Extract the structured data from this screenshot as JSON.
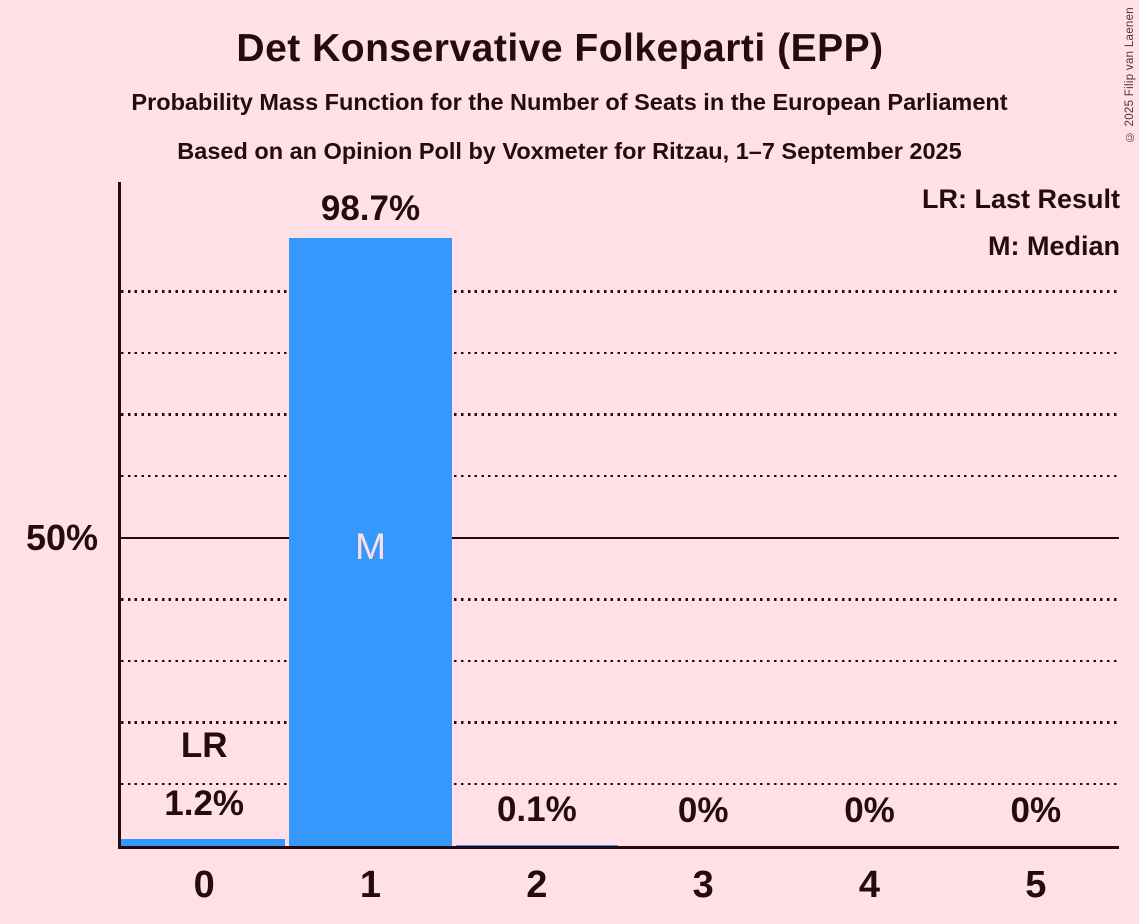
{
  "title": "Det Konservative Folkeparti (EPP)",
  "subtitle": "Probability Mass Function for the Number of Seats in the European Parliament",
  "source_line": "Based on an Opinion Poll by Voxmeter for Ritzau, 1–7 September 2025",
  "copyright": "© 2025 Filip van Laenen",
  "legend": {
    "last_result": "LR: Last Result",
    "median": "M: Median"
  },
  "colors": {
    "background": "#FFE0E6",
    "bar": "#3598FC",
    "text": "#250A12",
    "bar_text": "#FFDFE6"
  },
  "chart_data": {
    "type": "bar",
    "title": "Det Konservative Folkeparti (EPP)",
    "categories": [
      "0",
      "1",
      "2",
      "3",
      "4",
      "5"
    ],
    "values": [
      1.2,
      98.7,
      0.1,
      0,
      0,
      0
    ],
    "value_labels": [
      "1.2%",
      "98.7%",
      "0.1%",
      "0%",
      "0%",
      "0%"
    ],
    "ylim": [
      0,
      100
    ],
    "ytick": {
      "value": 50,
      "label": "50%"
    },
    "dotted_gridlines": [
      10,
      20,
      30,
      40,
      60,
      70,
      80,
      90
    ],
    "solid_gridline": 50,
    "grid_style": "dotted horizontal",
    "legend_position": "top-right",
    "annotations": [
      {
        "text": "LR",
        "category_index": 0,
        "meaning": "Last Result"
      },
      {
        "text": "M",
        "category_index": 1,
        "meaning": "Median"
      }
    ]
  }
}
